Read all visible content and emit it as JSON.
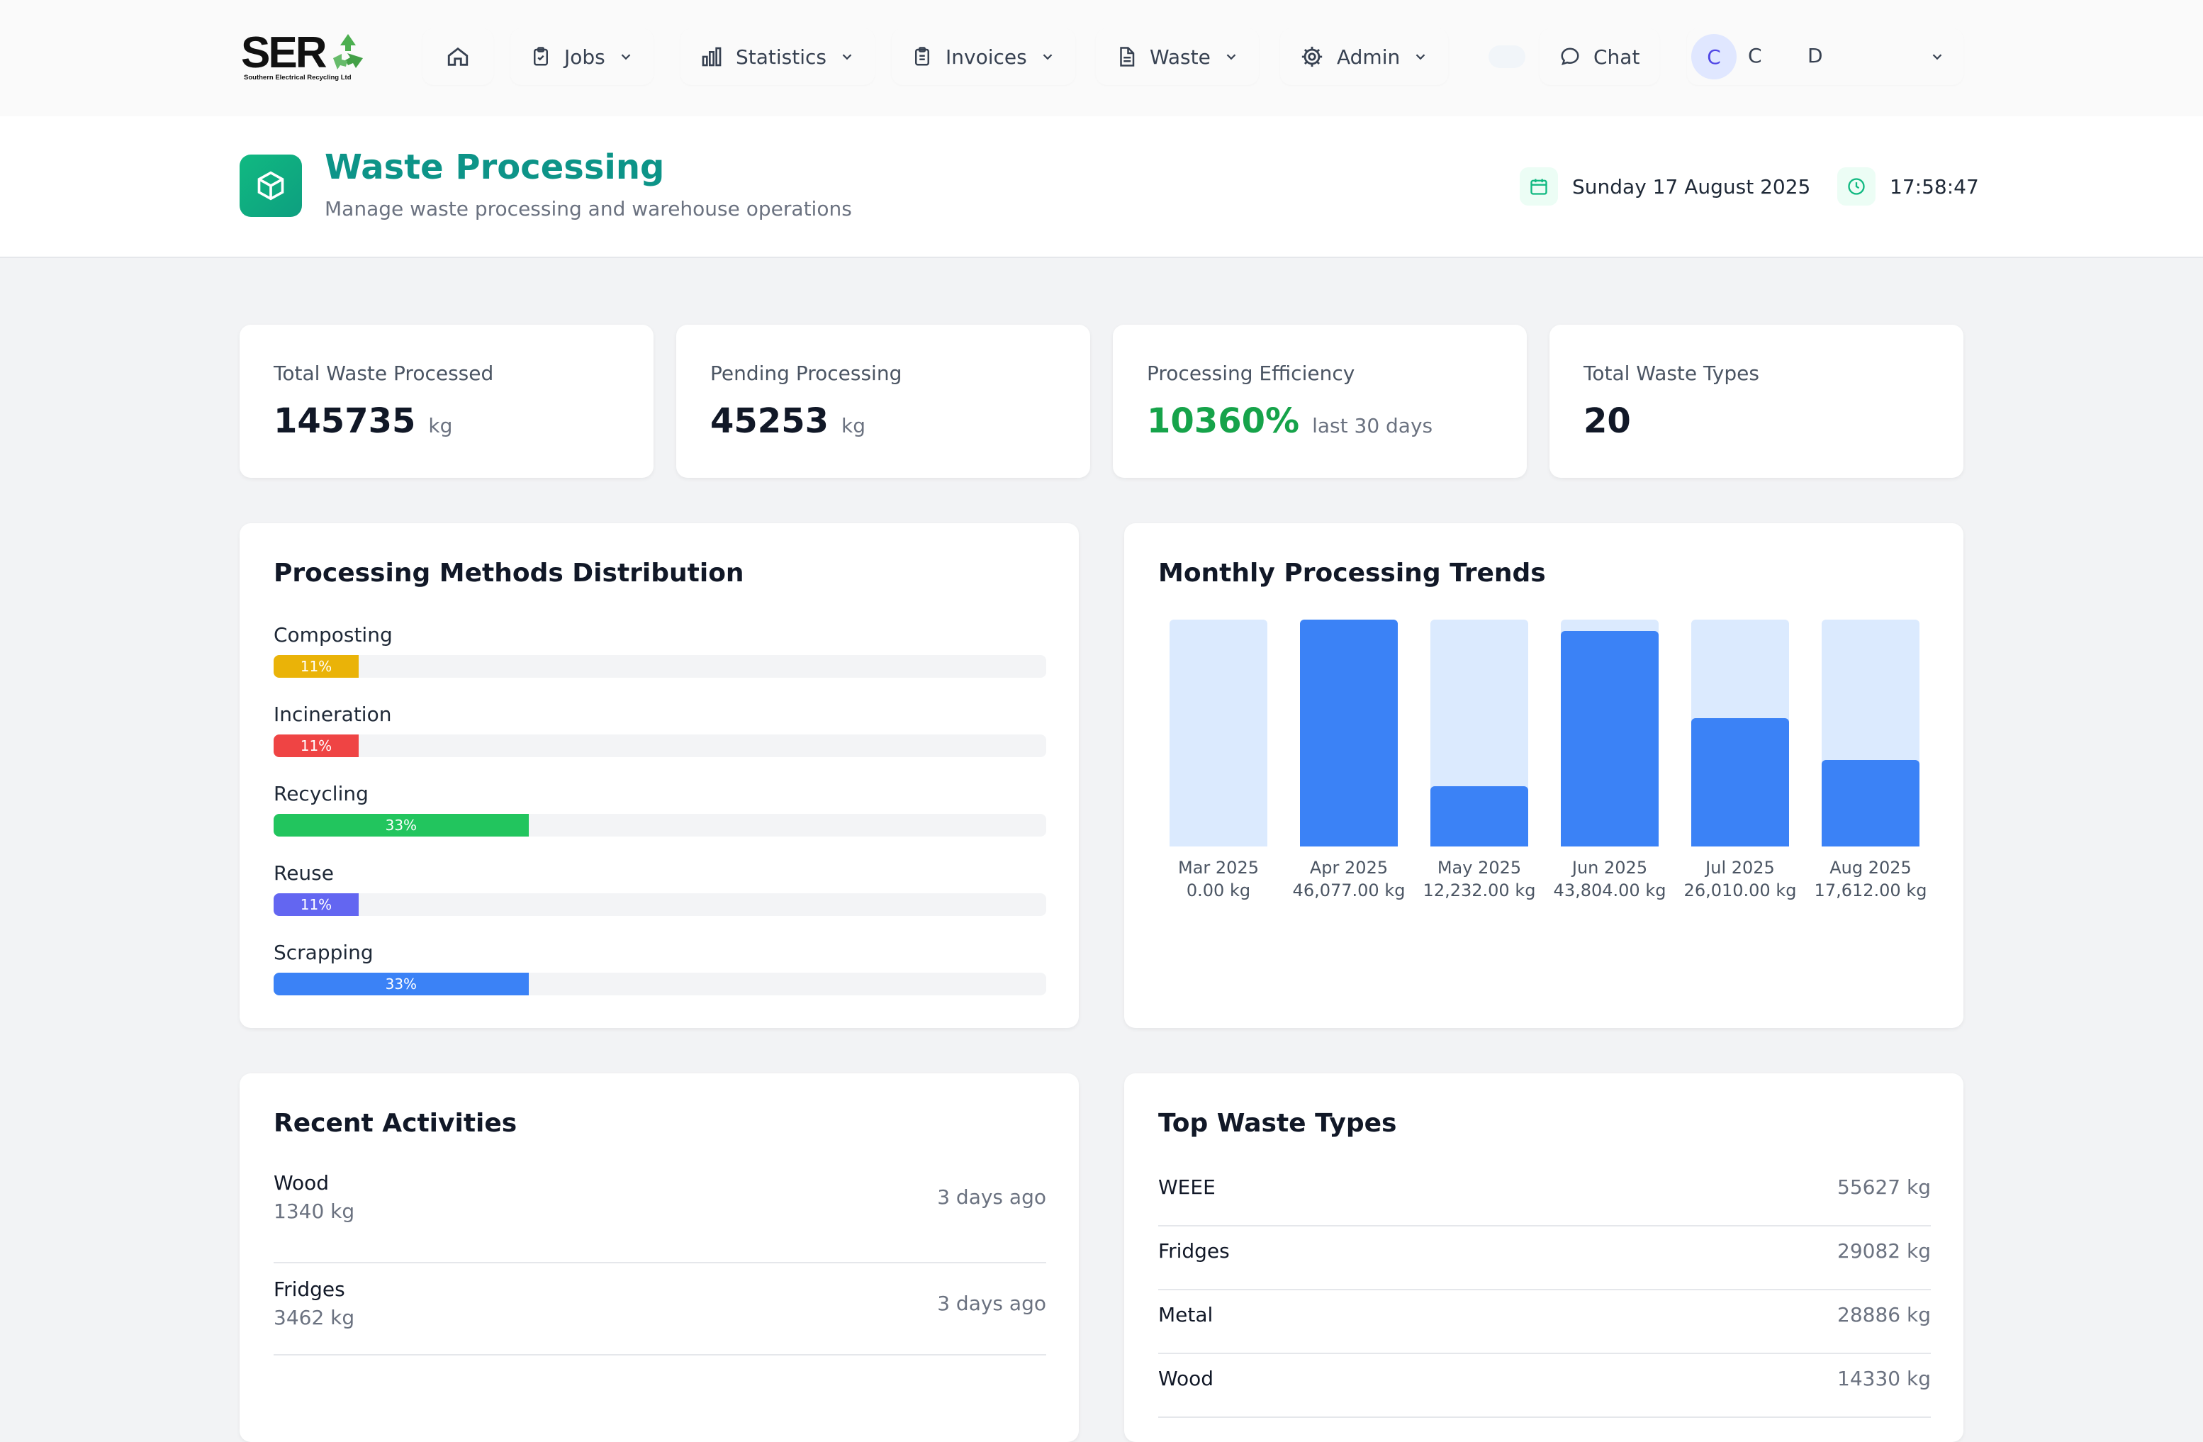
{
  "brand": {
    "letters": "SER",
    "tagline": "Southern Electrical Recycling Ltd"
  },
  "nav": {
    "items": [
      {
        "label": "Jobs"
      },
      {
        "label": "Statistics"
      },
      {
        "label": "Invoices"
      },
      {
        "label": "Waste"
      },
      {
        "label": "Admin"
      }
    ],
    "chat_label": "Chat",
    "user": {
      "avatar_initial": "C",
      "first_initial": "C",
      "last_initial": "D"
    }
  },
  "header": {
    "title": "Waste Processing",
    "subtitle": "Manage waste processing and warehouse operations",
    "date": "Sunday 17 August 2025",
    "time": "17:58:47"
  },
  "stats": [
    {
      "label": "Total Waste Processed",
      "value": "145735",
      "unit": "kg"
    },
    {
      "label": "Pending Processing",
      "value": "45253",
      "unit": "kg"
    },
    {
      "label": "Processing Efficiency",
      "value": "10360%",
      "unit": "last 30 days"
    },
    {
      "label": "Total Waste Types",
      "value": "20",
      "unit": ""
    }
  ],
  "methods": {
    "title": "Processing Methods Distribution",
    "items": [
      {
        "label": "Composting",
        "percent_label": "11%",
        "percent": 11,
        "color": "#eab308"
      },
      {
        "label": "Incineration",
        "percent_label": "11%",
        "percent": 11,
        "color": "#ef4444"
      },
      {
        "label": "Recycling",
        "percent_label": "33%",
        "percent": 33,
        "color": "#22c55e"
      },
      {
        "label": "Reuse",
        "percent_label": "11%",
        "percent": 11,
        "color": "#6366f1"
      },
      {
        "label": "Scrapping",
        "percent_label": "33%",
        "percent": 33,
        "color": "#3b82f6"
      }
    ]
  },
  "chart_data": {
    "type": "bar",
    "title": "Monthly Processing Trends",
    "categories": [
      "Mar 2025",
      "Apr 2025",
      "May 2025",
      "Jun 2025",
      "Jul 2025",
      "Aug 2025"
    ],
    "values": [
      0,
      46077,
      12232,
      43804,
      26010,
      17612
    ],
    "value_labels": [
      "0.00 kg",
      "46,077.00 kg",
      "12,232.00 kg",
      "43,804.00 kg",
      "26,010.00 kg",
      "17,612.00 kg"
    ],
    "ylabel": "kg",
    "ylim": [
      0,
      46077
    ]
  },
  "activities": {
    "title": "Recent Activities",
    "items": [
      {
        "name": "Wood",
        "weight": "1340 kg",
        "time": "3 days ago"
      },
      {
        "name": "Fridges",
        "weight": "3462 kg",
        "time": "3 days ago"
      }
    ]
  },
  "top_waste": {
    "title": "Top Waste Types",
    "items": [
      {
        "name": "WEEE",
        "value": "55627 kg"
      },
      {
        "name": "Fridges",
        "value": "29082 kg"
      },
      {
        "name": "Metal",
        "value": "28886 kg"
      },
      {
        "name": "Wood",
        "value": "14330 kg"
      }
    ]
  },
  "colors": {
    "accent": "#0d9488",
    "efficiency": "#16a34a",
    "bar": "#3b82f6",
    "bar_track": "#dbeafe"
  }
}
